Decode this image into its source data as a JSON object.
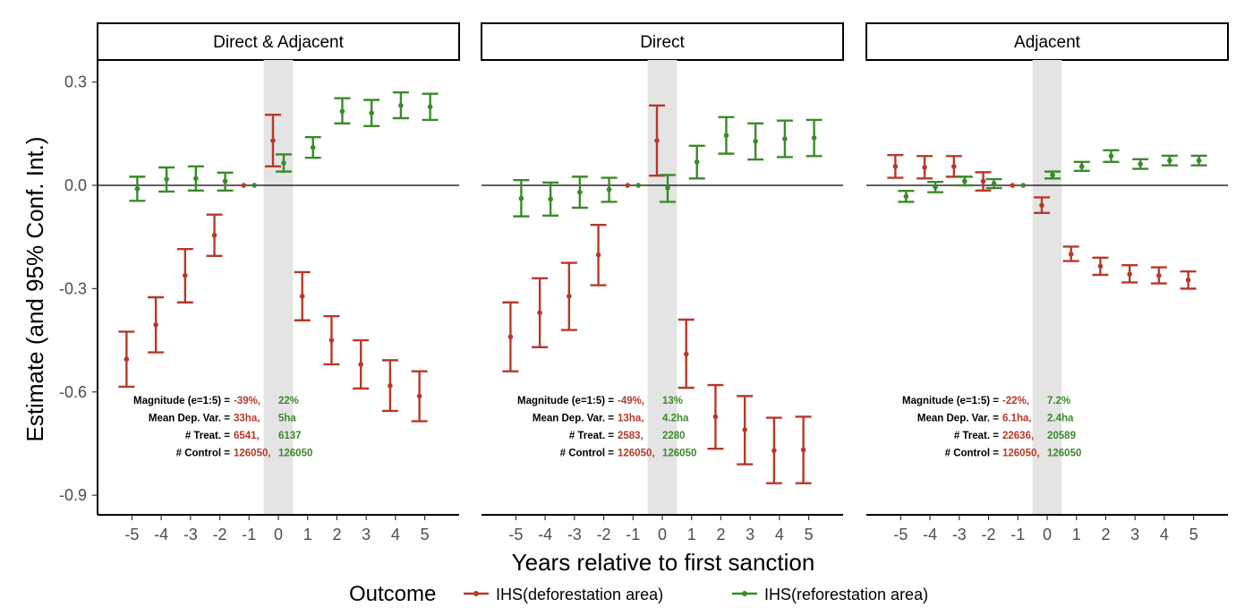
{
  "chart_data": {
    "type": "scatter",
    "subtype": "event-study coefficient plot with 95% confidence interval error bars",
    "xlabel": "Years relative to first sanction",
    "ylabel": "Estimate (and 95% Conf. Int.)",
    "ylim": [
      -1.0,
      0.38
    ],
    "yticks": [
      0.3,
      0.0,
      -0.3,
      -0.6,
      -0.9
    ],
    "ytick_labels": [
      "0.3",
      "0.0",
      "-0.3",
      "-0.6",
      "-0.9"
    ],
    "xticks": [
      -5,
      -4,
      -3,
      -2,
      -1,
      0,
      1,
      2,
      3,
      4,
      5
    ],
    "xtick_labels": [
      "-5",
      "-4",
      "-3",
      "-2",
      "-1",
      "0",
      "1",
      "2",
      "3",
      "4",
      "5"
    ],
    "reference_line_y": 0,
    "shaded_region_x": [
      -0.5,
      0.5
    ],
    "grid": false,
    "legend": {
      "title": "Outcome",
      "placement": "bottom",
      "entries": [
        {
          "label": "IHS(deforestation area)",
          "color": "#b5392a"
        },
        {
          "label": "IHS(reforestation area)",
          "color": "#3a8a2a"
        }
      ]
    },
    "annotation_labels": [
      "Magnitude (e=1:5) =",
      "Mean Dep. Var. =",
      "# Treat. =",
      "# Control ="
    ],
    "colors": {
      "deforestation": "#b5392a",
      "reforestation": "#3a8a2a"
    },
    "panels": [
      {
        "title": "Direct & Adjacent",
        "series": [
          {
            "name": "IHS(deforestation area)",
            "x": [
              -5,
              -4,
              -3,
              -2,
              -1,
              0,
              1,
              2,
              3,
              4,
              5
            ],
            "y": [
              -0.505,
              -0.405,
              -0.262,
              -0.145,
              0.0,
              0.13,
              -0.322,
              -0.45,
              -0.52,
              -0.582,
              -0.612
            ],
            "lo": [
              -0.585,
              -0.485,
              -0.34,
              -0.205,
              0.0,
              0.055,
              -0.392,
              -0.52,
              -0.59,
              -0.655,
              -0.685
            ],
            "hi": [
              -0.425,
              -0.325,
              -0.185,
              -0.085,
              0.0,
              0.205,
              -0.252,
              -0.38,
              -0.45,
              -0.508,
              -0.54
            ]
          },
          {
            "name": "IHS(reforestation area)",
            "x": [
              -5,
              -4,
              -3,
              -2,
              -1,
              0,
              1,
              2,
              3,
              4,
              5
            ],
            "y": [
              -0.01,
              0.018,
              0.02,
              0.012,
              0.0,
              0.065,
              0.11,
              0.215,
              0.21,
              0.232,
              0.228
            ],
            "lo": [
              -0.045,
              -0.018,
              -0.015,
              -0.015,
              0.0,
              0.04,
              0.08,
              0.18,
              0.172,
              0.195,
              0.19
            ],
            "hi": [
              0.025,
              0.052,
              0.055,
              0.037,
              0.0,
              0.09,
              0.14,
              0.253,
              0.248,
              0.27,
              0.266
            ]
          }
        ],
        "annotations": {
          "magnitude": [
            "-39%,",
            "22%"
          ],
          "mean_dep_var": [
            "33ha,",
            "5ha"
          ],
          "treat": [
            "6541,",
            "6137"
          ],
          "control": [
            "126050,",
            "126050"
          ]
        }
      },
      {
        "title": "Direct",
        "series": [
          {
            "name": "IHS(deforestation area)",
            "x": [
              -5,
              -4,
              -3,
              -2,
              -1,
              0,
              1,
              2,
              3,
              4,
              5
            ],
            "y": [
              -0.44,
              -0.37,
              -0.322,
              -0.202,
              0.0,
              0.13,
              -0.49,
              -0.672,
              -0.71,
              -0.77,
              -0.768
            ],
            "lo": [
              -0.54,
              -0.47,
              -0.42,
              -0.29,
              0.0,
              0.028,
              -0.588,
              -0.765,
              -0.81,
              -0.865,
              -0.865
            ],
            "hi": [
              -0.34,
              -0.27,
              -0.225,
              -0.115,
              0.0,
              0.232,
              -0.39,
              -0.58,
              -0.612,
              -0.675,
              -0.672
            ]
          },
          {
            "name": "IHS(reforestation area)",
            "x": [
              -5,
              -4,
              -3,
              -2,
              -1,
              0,
              1,
              2,
              3,
              4,
              5
            ],
            "y": [
              -0.038,
              -0.04,
              -0.02,
              -0.012,
              0.0,
              -0.008,
              0.068,
              0.145,
              0.128,
              0.135,
              0.138
            ],
            "lo": [
              -0.09,
              -0.088,
              -0.065,
              -0.048,
              0.0,
              -0.048,
              0.02,
              0.092,
              0.075,
              0.082,
              0.085
            ],
            "hi": [
              0.015,
              0.008,
              0.025,
              0.022,
              0.0,
              0.03,
              0.115,
              0.198,
              0.18,
              0.188,
              0.19
            ]
          }
        ],
        "annotations": {
          "magnitude": [
            "-49%,",
            "13%"
          ],
          "mean_dep_var": [
            "13ha,",
            "4.2ha"
          ],
          "treat": [
            "2583,",
            "2280"
          ],
          "control": [
            "126050,",
            "126050"
          ]
        }
      },
      {
        "title": "Adjacent",
        "series": [
          {
            "name": "IHS(deforestation area)",
            "x": [
              -5,
              -4,
              -3,
              -2,
              -1,
              0,
              1,
              2,
              3,
              4,
              5
            ],
            "y": [
              0.055,
              0.052,
              0.055,
              0.012,
              0.0,
              -0.058,
              -0.2,
              -0.235,
              -0.258,
              -0.262,
              -0.275
            ],
            "lo": [
              0.022,
              0.02,
              0.025,
              -0.015,
              0.0,
              -0.08,
              -0.22,
              -0.26,
              -0.282,
              -0.285,
              -0.3
            ],
            "hi": [
              0.088,
              0.085,
              0.085,
              0.038,
              0.0,
              -0.035,
              -0.178,
              -0.21,
              -0.232,
              -0.238,
              -0.25
            ]
          },
          {
            "name": "IHS(reforestation area)",
            "x": [
              -5,
              -4,
              -3,
              -2,
              -1,
              0,
              1,
              2,
              3,
              4,
              5
            ],
            "y": [
              -0.032,
              -0.005,
              0.012,
              0.005,
              0.0,
              0.03,
              0.055,
              0.085,
              0.062,
              0.072,
              0.072
            ],
            "lo": [
              -0.048,
              -0.02,
              0.0,
              -0.008,
              0.0,
              0.02,
              0.042,
              0.068,
              0.048,
              0.058,
              0.058
            ],
            "hi": [
              -0.016,
              0.01,
              0.025,
              0.018,
              0.0,
              0.04,
              0.068,
              0.102,
              0.076,
              0.086,
              0.086
            ]
          }
        ],
        "annotations": {
          "magnitude": [
            "-22%,",
            "7.2%"
          ],
          "mean_dep_var": [
            "6.1ha,",
            "2.4ha"
          ],
          "treat": [
            "22636,",
            "20589"
          ],
          "control": [
            "126050,",
            "126050"
          ]
        }
      }
    ]
  }
}
